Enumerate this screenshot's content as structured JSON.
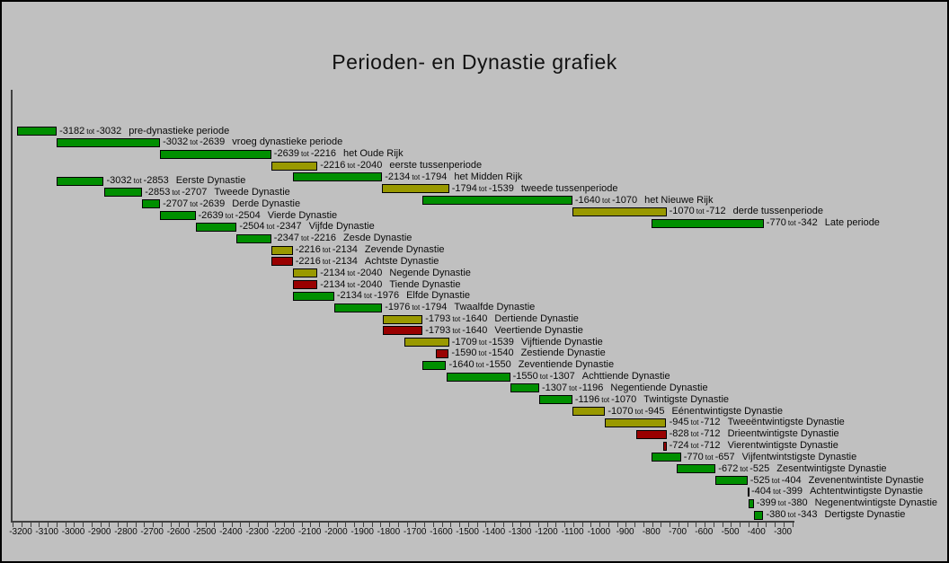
{
  "title": "Perioden- en Dynastie grafiek",
  "range_word": "tot",
  "colors": {
    "green": "#008f00",
    "olive": "#999900",
    "red": "#990000",
    "background": "#c0c0c0",
    "frame": "#404040",
    "text": "#000000"
  },
  "chart_data": {
    "type": "bar",
    "orientation": "horizontal-timeline",
    "title": "Perioden- en Dynastie grafiek",
    "x_axis": {
      "min": -3200,
      "max": -225,
      "major_tick_step": 100,
      "minor_tick_step": 33.333,
      "grid": false,
      "tick_labels": [
        "-3200",
        "-3100",
        "-3000",
        "-2900",
        "-2800",
        "-2700",
        "-2600",
        "-2500",
        "-2400",
        "-2300",
        "-2200",
        "-2100",
        "-2000",
        "-1900",
        "-1800",
        "-1700",
        "-1600",
        "-1500",
        "-1400",
        "-1300",
        "-1200",
        "-1100",
        "-1000",
        "-900",
        "-800",
        "-700",
        "-600",
        "-500",
        "-400",
        "-300"
      ]
    },
    "series": [
      {
        "name": "periods",
        "rows": [
          {
            "start": -3182,
            "end": -3032,
            "label": "pre-dynastieke periode",
            "color": "green"
          },
          {
            "start": -3032,
            "end": -2639,
            "label": "vroeg dynastieke periode",
            "color": "green"
          },
          {
            "start": -2639,
            "end": -2216,
            "label": "het Oude Rijk",
            "color": "green"
          },
          {
            "start": -2216,
            "end": -2040,
            "label": "eerste tussenperiode",
            "color": "olive"
          },
          {
            "start": -2134,
            "end": -1794,
            "label": "het Midden Rijk",
            "color": "green"
          },
          {
            "start": -1794,
            "end": -1539,
            "label": "tweede tussenperiode",
            "color": "olive"
          },
          {
            "start": -1640,
            "end": -1070,
            "label": "het Nieuwe Rijk",
            "color": "green"
          },
          {
            "start": -1070,
            "end": -712,
            "label": "derde tussenperiode",
            "color": "olive"
          },
          {
            "start": -770,
            "end": -342,
            "label": "Late periode",
            "color": "green"
          }
        ]
      },
      {
        "name": "dynasties",
        "rows": [
          {
            "start": -3032,
            "end": -2853,
            "label": "Eerste Dynastie",
            "color": "green"
          },
          {
            "start": -2853,
            "end": -2707,
            "label": "Tweede Dynastie",
            "color": "green"
          },
          {
            "start": -2707,
            "end": -2639,
            "label": "Derde Dynastie",
            "color": "green"
          },
          {
            "start": -2639,
            "end": -2504,
            "label": "Vierde Dynastie",
            "color": "green"
          },
          {
            "start": -2504,
            "end": -2347,
            "label": "Vijfde Dynastie",
            "color": "green"
          },
          {
            "start": -2347,
            "end": -2216,
            "label": "Zesde Dynastie",
            "color": "green"
          },
          {
            "start": -2216,
            "end": -2134,
            "label": "Zevende Dynastie",
            "color": "olive"
          },
          {
            "start": -2216,
            "end": -2134,
            "label": "Achtste Dynastie",
            "color": "red"
          },
          {
            "start": -2134,
            "end": -2040,
            "label": "Negende Dynastie",
            "color": "olive"
          },
          {
            "start": -2134,
            "end": -2040,
            "label": "Tiende Dynastie",
            "color": "red"
          },
          {
            "start": -2134,
            "end": -1976,
            "label": "Elfde Dynastie",
            "color": "green"
          },
          {
            "start": -1976,
            "end": -1794,
            "label": "Twaalfde Dynastie",
            "color": "green"
          },
          {
            "start": -1793,
            "end": -1640,
            "label": "Dertiende Dynastie",
            "color": "olive"
          },
          {
            "start": -1793,
            "end": -1640,
            "label": "Veertiende Dynastie",
            "color": "red"
          },
          {
            "start": -1709,
            "end": -1539,
            "label": "Vijftiende Dynastie",
            "color": "olive"
          },
          {
            "start": -1590,
            "end": -1540,
            "label": "Zestiende Dynastie",
            "color": "red"
          },
          {
            "start": -1640,
            "end": -1550,
            "label": "Zeventiende Dynastie",
            "color": "green"
          },
          {
            "start": -1550,
            "end": -1307,
            "label": "Achttiende Dynastie",
            "color": "green"
          },
          {
            "start": -1307,
            "end": -1196,
            "label": "Negentiende Dynastie",
            "color": "green"
          },
          {
            "start": -1196,
            "end": -1070,
            "label": "Twintigste Dynastie",
            "color": "green"
          },
          {
            "start": -1070,
            "end": -945,
            "label": "Eénentwintigste Dynastie",
            "color": "olive"
          },
          {
            "start": -945,
            "end": -712,
            "label": "Tweeëntwintigste Dynastie",
            "color": "olive"
          },
          {
            "start": -828,
            "end": -712,
            "label": "Drieentwintigste Dynastie",
            "color": "red"
          },
          {
            "start": -724,
            "end": -712,
            "label": "Vierentwintigste Dynastie",
            "color": "red"
          },
          {
            "start": -770,
            "end": -657,
            "label": "Vijfentwintstigste Dynastie",
            "color": "green"
          },
          {
            "start": -672,
            "end": -525,
            "label": "Zesentwintigste Dynastie",
            "color": "green"
          },
          {
            "start": -525,
            "end": -404,
            "label": "Zevenentwintiste Dynastie",
            "color": "green"
          },
          {
            "start": -404,
            "end": -399,
            "label": "Achtentwintigste Dynastie",
            "color": "green"
          },
          {
            "start": -399,
            "end": -380,
            "label": "Negenentwintigste Dynastie",
            "color": "green"
          },
          {
            "start": -380,
            "end": -343,
            "label": "Dertigste Dynastie",
            "color": "green"
          }
        ]
      }
    ]
  }
}
